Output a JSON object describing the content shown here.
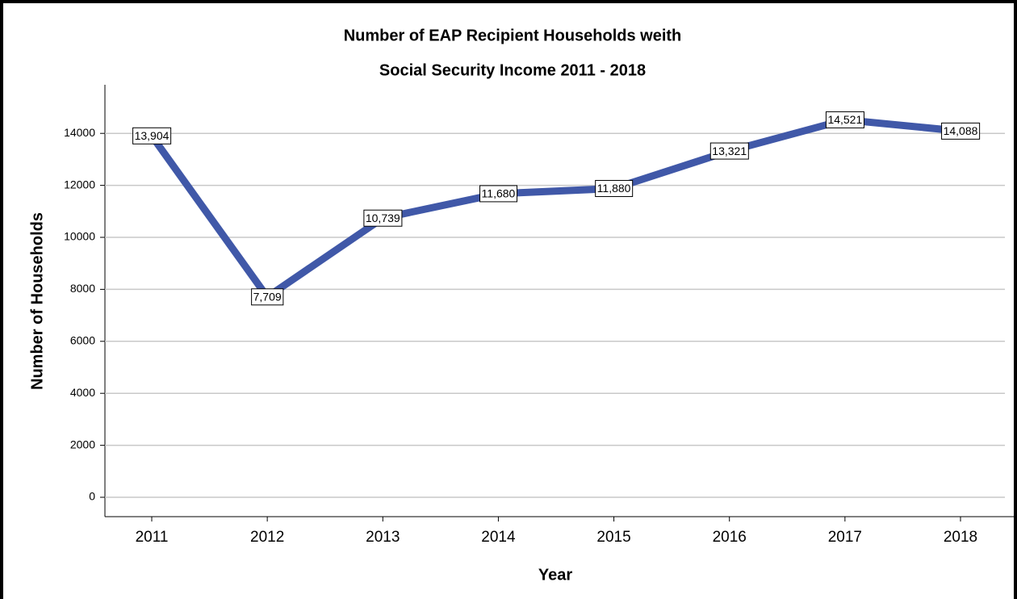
{
  "chart_data": {
    "type": "line",
    "title": [
      "Number of EAP Recipient Households weith",
      "Social Security Income 2011 - 2018"
    ],
    "x_label": "Year",
    "y_label": "Number of Households",
    "categories": [
      "2011",
      "2012",
      "2013",
      "2014",
      "2015",
      "2016",
      "2017",
      "2018"
    ],
    "series": [
      {
        "name": "Households",
        "color": "#4058a8",
        "values": [
          13904,
          7709,
          10739,
          11680,
          11880,
          13321,
          14521,
          14088
        ],
        "value_labels": [
          "13,904",
          "7,709",
          "10,739",
          "11,680",
          "11,880",
          "13,321",
          "14,521",
          "14,088"
        ]
      }
    ],
    "ylim": [
      -745,
      15870
    ],
    "yticks": [
      0,
      2000,
      4000,
      6000,
      8000,
      10000,
      12000,
      14000
    ],
    "grid": true
  }
}
